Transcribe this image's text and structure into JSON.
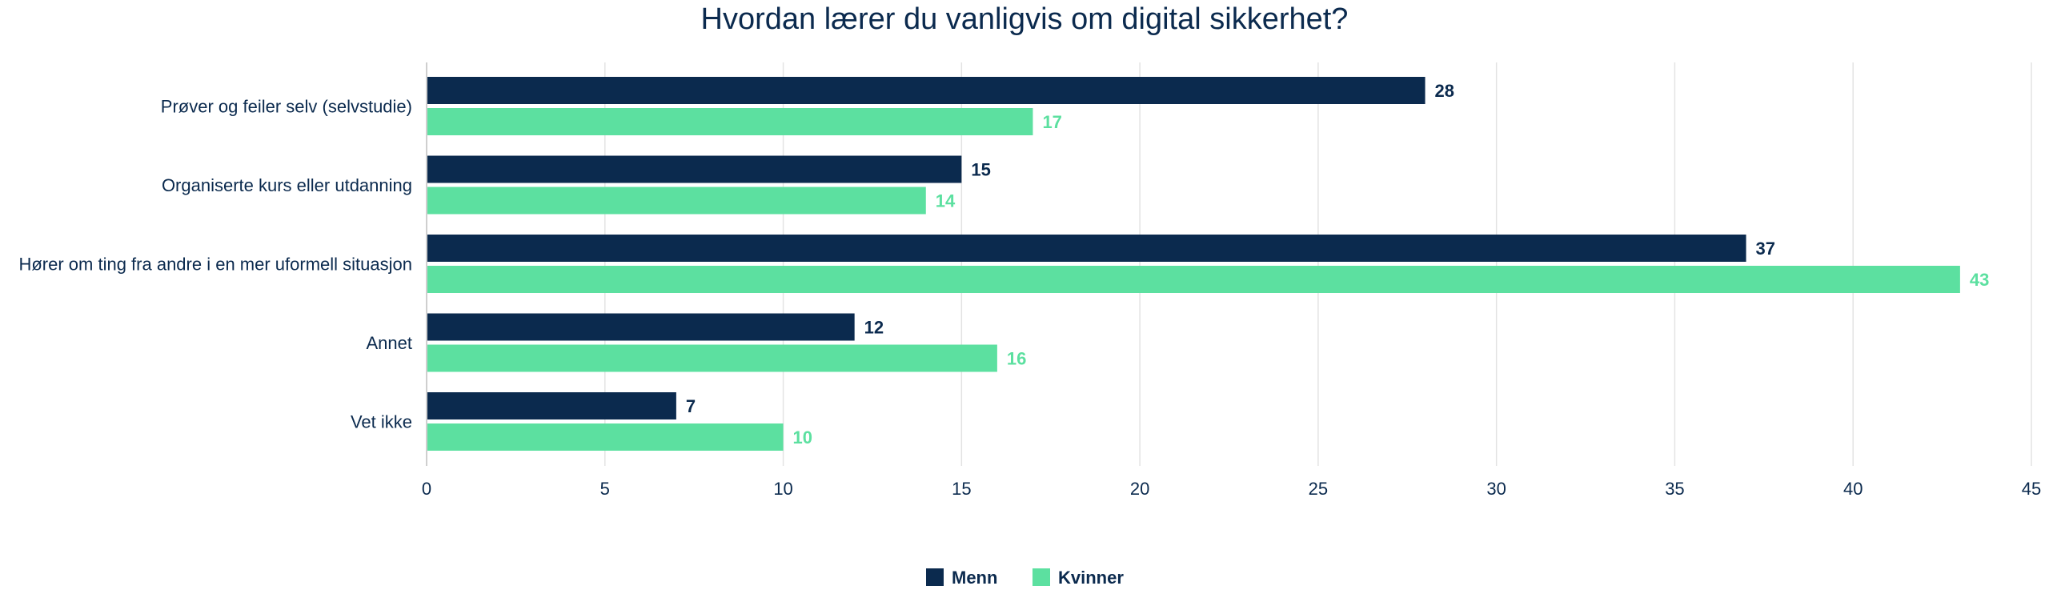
{
  "chart_data": {
    "type": "bar",
    "orientation": "horizontal",
    "title": "Hvordan lærer du vanligvis om digital sikkerhet?",
    "categories": [
      "Prøver og feiler selv (selvstudie)",
      "Organiserte kurs eller utdanning",
      "Hører om ting fra andre i en mer uformell situasjon",
      "Annet",
      "Vet ikke"
    ],
    "series": [
      {
        "name": "Menn",
        "color": "#0b2a4e",
        "values": [
          28,
          15,
          37,
          12,
          7
        ]
      },
      {
        "name": "Kvinner",
        "color": "#5ce0a0",
        "values": [
          17,
          14,
          43,
          16,
          10
        ]
      }
    ],
    "xlim": [
      0,
      45
    ],
    "xticks": [
      0,
      5,
      10,
      15,
      20,
      25,
      30,
      35,
      40,
      45
    ],
    "grid": true,
    "legend_position": "bottom-center",
    "data_labels": true
  }
}
